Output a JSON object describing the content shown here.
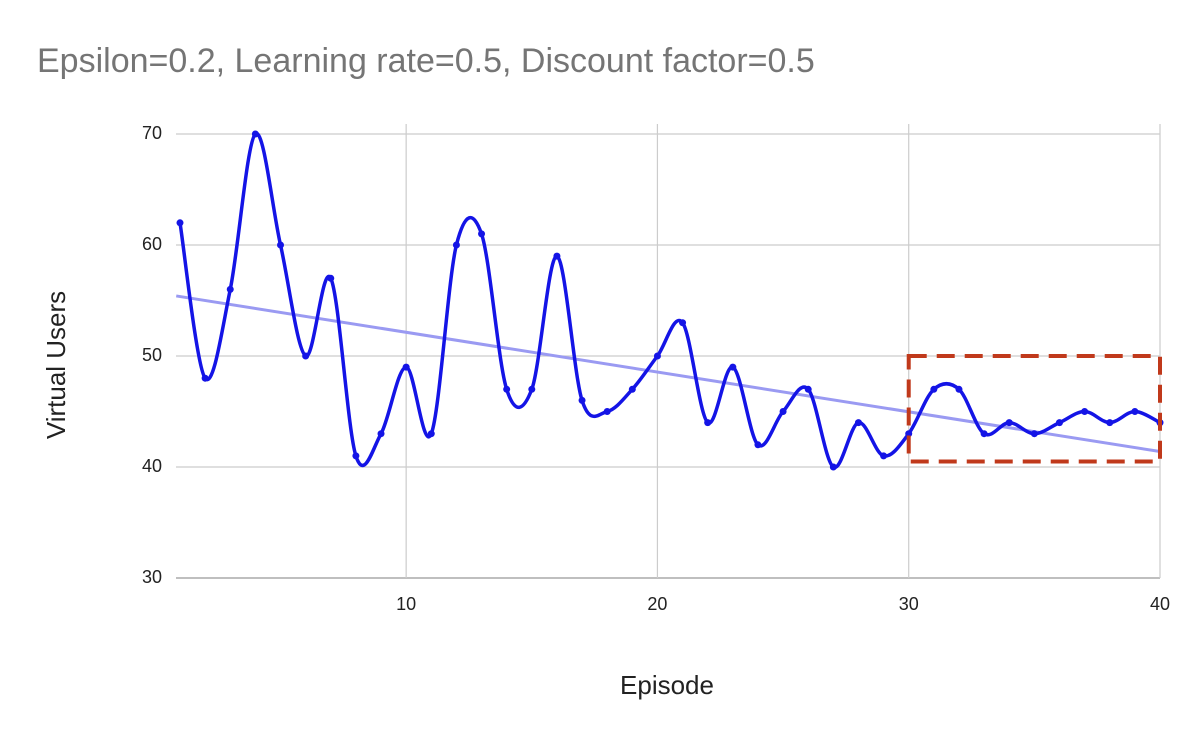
{
  "chart_data": {
    "type": "line",
    "title": "Epsilon=0.2, Learning rate=0.5, Discount factor=0.5",
    "x_label": "Episode",
    "y_label": "Virtual Users",
    "x": [
      1,
      2,
      3,
      4,
      5,
      6,
      7,
      8,
      9,
      10,
      11,
      12,
      13,
      14,
      15,
      16,
      17,
      18,
      19,
      20,
      21,
      22,
      23,
      24,
      25,
      26,
      27,
      28,
      29,
      30,
      31,
      32,
      33,
      34,
      35,
      36,
      37,
      38,
      39,
      40
    ],
    "series": [
      {
        "name": "Virtual Users",
        "color": "#1414e6",
        "values": [
          62,
          48,
          56,
          70,
          60,
          50,
          57,
          41,
          43,
          49,
          43,
          60,
          61,
          47,
          47,
          59,
          46,
          45,
          47,
          50,
          53,
          44,
          49,
          42,
          45,
          47,
          40,
          44,
          41,
          43,
          47,
          47,
          43,
          44,
          43,
          44,
          45,
          44,
          45,
          44
        ]
      }
    ],
    "smooth": true,
    "trendline": {
      "type": "linear",
      "color": "#9a9af2"
    },
    "highlight_box": {
      "xlim": [
        30,
        40
      ],
      "ylim": [
        40.5,
        50
      ],
      "color": "#c0391b"
    },
    "xlim": [
      1,
      40
    ],
    "ylim": [
      30,
      70
    ],
    "xticks": [
      10,
      20,
      30,
      40
    ],
    "yticks": [
      30,
      40,
      50,
      60,
      70
    ],
    "grid": true
  }
}
